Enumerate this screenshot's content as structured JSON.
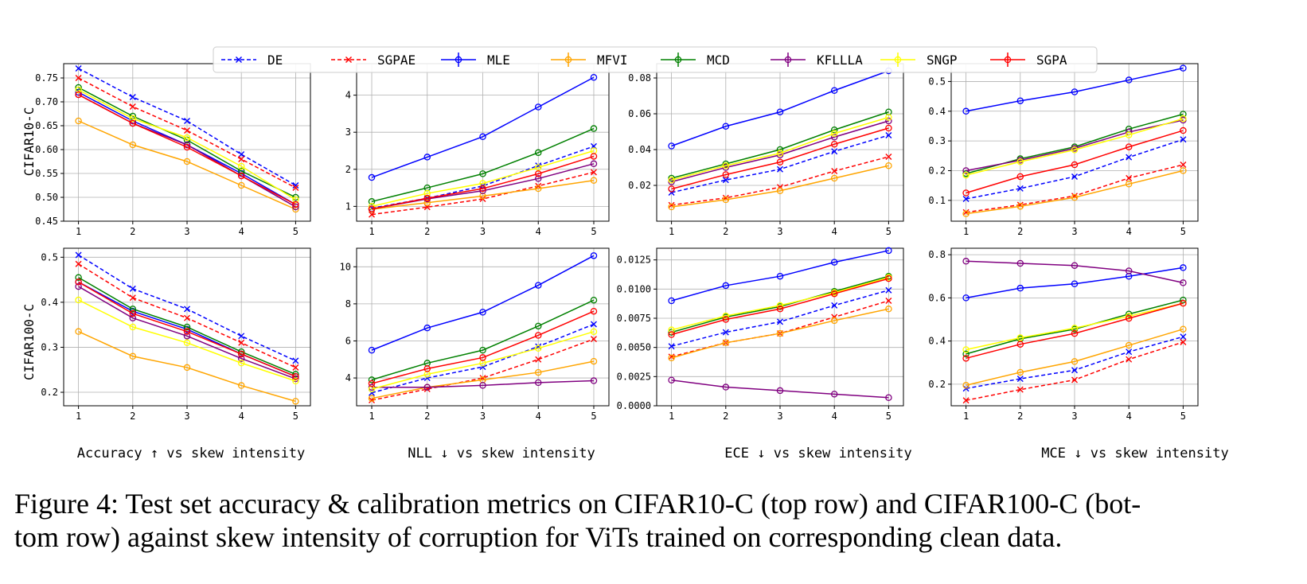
{
  "legend": {
    "entries": [
      {
        "name": "DE",
        "color": "#0000ff",
        "dashed": true,
        "marker": "x"
      },
      {
        "name": "SGPAE",
        "color": "#ff0000",
        "dashed": true,
        "marker": "x"
      },
      {
        "name": "MLE",
        "color": "#0000ff",
        "dashed": false,
        "marker": "o"
      },
      {
        "name": "MFVI",
        "color": "#ffa500",
        "dashed": false,
        "marker": "o"
      },
      {
        "name": "MCD",
        "color": "#008000",
        "dashed": false,
        "marker": "o"
      },
      {
        "name": "KFLLLA",
        "color": "#800080",
        "dashed": false,
        "marker": "o"
      },
      {
        "name": "SNGP",
        "color": "#ffff00",
        "dashed": false,
        "marker": "o"
      },
      {
        "name": "SGPA",
        "color": "#ff0000",
        "dashed": false,
        "marker": "o"
      }
    ]
  },
  "row_labels": [
    "CIFAR10-C",
    "CIFAR100-C"
  ],
  "column_labels": [
    "Accuracy ↑  vs skew intensity",
    "NLL ↓  vs skew intensity",
    "ECE ↓  vs skew intensity",
    "MCE ↓  vs skew intensity"
  ],
  "chart_data": [
    {
      "type": "line",
      "row": 0,
      "col": 0,
      "x": [
        1,
        2,
        3,
        4,
        5
      ],
      "ylim": [
        0.45,
        0.78
      ],
      "yticks": [
        "0.45",
        "0.50",
        "0.55",
        "0.60",
        "0.65",
        "0.70",
        "0.75"
      ],
      "ytick_values": [
        0.45,
        0.5,
        0.55,
        0.6,
        0.65,
        0.7,
        0.75
      ],
      "xticks": [
        "1",
        "2",
        "3",
        "4",
        "5"
      ],
      "series": [
        {
          "name": "DE",
          "values": [
            0.77,
            0.71,
            0.66,
            0.59,
            0.525
          ]
        },
        {
          "name": "SGPAE",
          "values": [
            0.75,
            0.69,
            0.64,
            0.58,
            0.52
          ]
        },
        {
          "name": "MLE",
          "values": [
            0.72,
            0.66,
            0.61,
            0.55,
            0.485
          ]
        },
        {
          "name": "MFVI",
          "values": [
            0.66,
            0.61,
            0.575,
            0.525,
            0.475
          ]
        },
        {
          "name": "MCD",
          "values": [
            0.73,
            0.67,
            0.62,
            0.555,
            0.5
          ]
        },
        {
          "name": "KFLLLA",
          "values": [
            0.715,
            0.655,
            0.61,
            0.545,
            0.48
          ]
        },
        {
          "name": "SNGP",
          "values": [
            0.725,
            0.665,
            0.625,
            0.565,
            0.495
          ]
        },
        {
          "name": "SGPA",
          "values": [
            0.715,
            0.655,
            0.605,
            0.545,
            0.485
          ]
        }
      ]
    },
    {
      "type": "line",
      "row": 0,
      "col": 1,
      "x": [
        1,
        2,
        3,
        4,
        5
      ],
      "ylim": [
        0.6,
        4.85
      ],
      "yticks": [
        "1",
        "2",
        "3",
        "4"
      ],
      "ytick_values": [
        1,
        2,
        3,
        4
      ],
      "xticks": [
        "1",
        "2",
        "3",
        "4",
        "5"
      ],
      "series": [
        {
          "name": "DE",
          "values": [
            0.95,
            1.22,
            1.55,
            2.1,
            2.62
          ]
        },
        {
          "name": "SGPAE",
          "values": [
            0.78,
            0.98,
            1.2,
            1.55,
            1.92
          ]
        },
        {
          "name": "MLE",
          "values": [
            1.78,
            2.33,
            2.88,
            3.68,
            4.48
          ]
        },
        {
          "name": "MFVI",
          "values": [
            0.92,
            1.1,
            1.28,
            1.48,
            1.7
          ]
        },
        {
          "name": "MCD",
          "values": [
            1.13,
            1.5,
            1.88,
            2.45,
            3.1
          ]
        },
        {
          "name": "KFLLLA",
          "values": [
            0.93,
            1.2,
            1.42,
            1.75,
            2.15
          ]
        },
        {
          "name": "SNGP",
          "values": [
            1.0,
            1.35,
            1.62,
            2.05,
            2.5
          ]
        },
        {
          "name": "SGPA",
          "values": [
            0.93,
            1.22,
            1.48,
            1.88,
            2.35
          ]
        }
      ]
    },
    {
      "type": "line",
      "row": 0,
      "col": 2,
      "x": [
        1,
        2,
        3,
        4,
        5
      ],
      "ylim": [
        0.0,
        0.088
      ],
      "yticks": [
        "0.02",
        "0.04",
        "0.06",
        "0.08"
      ],
      "ytick_values": [
        0.02,
        0.04,
        0.06,
        0.08
      ],
      "xticks": [
        "1",
        "2",
        "3",
        "4",
        "5"
      ],
      "series": [
        {
          "name": "DE",
          "values": [
            0.016,
            0.023,
            0.029,
            0.039,
            0.048
          ]
        },
        {
          "name": "SGPAE",
          "values": [
            0.009,
            0.013,
            0.019,
            0.028,
            0.036
          ]
        },
        {
          "name": "MLE",
          "values": [
            0.042,
            0.053,
            0.061,
            0.073,
            0.084
          ]
        },
        {
          "name": "MFVI",
          "values": [
            0.008,
            0.012,
            0.017,
            0.024,
            0.031
          ]
        },
        {
          "name": "MCD",
          "values": [
            0.024,
            0.032,
            0.04,
            0.051,
            0.061
          ]
        },
        {
          "name": "KFLLLA",
          "values": [
            0.022,
            0.03,
            0.037,
            0.047,
            0.056
          ]
        },
        {
          "name": "SNGP",
          "values": [
            0.023,
            0.031,
            0.038,
            0.049,
            0.058
          ]
        },
        {
          "name": "SGPA",
          "values": [
            0.018,
            0.026,
            0.033,
            0.043,
            0.052
          ]
        }
      ]
    },
    {
      "type": "line",
      "row": 0,
      "col": 3,
      "x": [
        1,
        2,
        3,
        4,
        5
      ],
      "ylim": [
        0.03,
        0.56
      ],
      "yticks": [
        "0.1",
        "0.2",
        "0.3",
        "0.4",
        "0.5"
      ],
      "ytick_values": [
        0.1,
        0.2,
        0.3,
        0.4,
        0.5
      ],
      "xticks": [
        "1",
        "2",
        "3",
        "4",
        "5"
      ],
      "series": [
        {
          "name": "DE",
          "values": [
            0.105,
            0.14,
            0.18,
            0.245,
            0.305
          ]
        },
        {
          "name": "SGPAE",
          "values": [
            0.06,
            0.085,
            0.115,
            0.175,
            0.22
          ]
        },
        {
          "name": "MLE",
          "values": [
            0.4,
            0.435,
            0.465,
            0.505,
            0.545
          ]
        },
        {
          "name": "MFVI",
          "values": [
            0.055,
            0.08,
            0.11,
            0.155,
            0.2
          ]
        },
        {
          "name": "MCD",
          "values": [
            0.19,
            0.24,
            0.28,
            0.34,
            0.39
          ]
        },
        {
          "name": "KFLLLA",
          "values": [
            0.2,
            0.235,
            0.275,
            0.33,
            0.37
          ]
        },
        {
          "name": "SNGP",
          "values": [
            0.185,
            0.23,
            0.27,
            0.32,
            0.375
          ]
        },
        {
          "name": "SGPA",
          "values": [
            0.125,
            0.18,
            0.22,
            0.28,
            0.335
          ]
        }
      ]
    },
    {
      "type": "line",
      "row": 1,
      "col": 0,
      "x": [
        1,
        2,
        3,
        4,
        5
      ],
      "ylim": [
        0.17,
        0.52
      ],
      "yticks": [
        "0.2",
        "0.3",
        "0.4",
        "0.5"
      ],
      "ytick_values": [
        0.2,
        0.3,
        0.4,
        0.5
      ],
      "xticks": [
        "1",
        "2",
        "3",
        "4",
        "5"
      ],
      "series": [
        {
          "name": "DE",
          "values": [
            0.505,
            0.43,
            0.385,
            0.325,
            0.27
          ]
        },
        {
          "name": "SGPAE",
          "values": [
            0.485,
            0.41,
            0.365,
            0.31,
            0.255
          ]
        },
        {
          "name": "MLE",
          "values": [
            0.445,
            0.38,
            0.34,
            0.285,
            0.235
          ]
        },
        {
          "name": "MFVI",
          "values": [
            0.335,
            0.28,
            0.255,
            0.215,
            0.18
          ]
        },
        {
          "name": "MCD",
          "values": [
            0.455,
            0.385,
            0.345,
            0.29,
            0.24
          ]
        },
        {
          "name": "KFLLLA",
          "values": [
            0.435,
            0.365,
            0.325,
            0.275,
            0.23
          ]
        },
        {
          "name": "SNGP",
          "values": [
            0.405,
            0.345,
            0.31,
            0.265,
            0.225
          ]
        },
        {
          "name": "SGPA",
          "values": [
            0.445,
            0.375,
            0.335,
            0.285,
            0.235
          ]
        }
      ]
    },
    {
      "type": "line",
      "row": 1,
      "col": 1,
      "x": [
        1,
        2,
        3,
        4,
        5
      ],
      "ylim": [
        2.5,
        11.0
      ],
      "yticks": [
        "4",
        "6",
        "8",
        "10"
      ],
      "ytick_values": [
        4,
        6,
        8,
        10
      ],
      "xticks": [
        "1",
        "2",
        "3",
        "4",
        "5"
      ],
      "series": [
        {
          "name": "DE",
          "values": [
            3.2,
            4.0,
            4.6,
            5.7,
            6.9
          ]
        },
        {
          "name": "SGPAE",
          "values": [
            2.8,
            3.4,
            4.0,
            5.0,
            6.1
          ]
        },
        {
          "name": "MLE",
          "values": [
            5.5,
            6.7,
            7.55,
            9.0,
            10.6
          ]
        },
        {
          "name": "MFVI",
          "values": [
            2.9,
            3.5,
            3.9,
            4.3,
            4.9
          ]
        },
        {
          "name": "MCD",
          "values": [
            3.9,
            4.8,
            5.5,
            6.8,
            8.2
          ]
        },
        {
          "name": "KFLLLA",
          "values": [
            3.5,
            3.5,
            3.6,
            3.75,
            3.85
          ]
        },
        {
          "name": "SNGP",
          "values": [
            3.4,
            4.2,
            4.8,
            5.6,
            6.5
          ]
        },
        {
          "name": "SGPA",
          "values": [
            3.7,
            4.5,
            5.1,
            6.3,
            7.6
          ]
        }
      ]
    },
    {
      "type": "line",
      "row": 1,
      "col": 2,
      "x": [
        1,
        2,
        3,
        4,
        5
      ],
      "ylim": [
        0.0,
        0.0135
      ],
      "yticks": [
        "0.0000",
        "0.0025",
        "0.0050",
        "0.0075",
        "0.0100",
        "0.0125"
      ],
      "ytick_values": [
        0,
        0.0025,
        0.005,
        0.0075,
        0.01,
        0.0125
      ],
      "xticks": [
        "1",
        "2",
        "3",
        "4",
        "5"
      ],
      "series": [
        {
          "name": "DE",
          "values": [
            0.0051,
            0.0063,
            0.0072,
            0.0086,
            0.0099
          ]
        },
        {
          "name": "SGPAE",
          "values": [
            0.0042,
            0.0054,
            0.0062,
            0.0076,
            0.009
          ]
        },
        {
          "name": "MLE",
          "values": [
            0.009,
            0.0103,
            0.0111,
            0.0123,
            0.0133
          ]
        },
        {
          "name": "MFVI",
          "values": [
            0.0041,
            0.0054,
            0.0062,
            0.0073,
            0.0083
          ]
        },
        {
          "name": "MCD",
          "values": [
            0.0063,
            0.0076,
            0.0085,
            0.0098,
            0.0111
          ]
        },
        {
          "name": "KFLLLA",
          "values": [
            0.0022,
            0.0016,
            0.0013,
            0.001,
            0.0007
          ]
        },
        {
          "name": "SNGP",
          "values": [
            0.0065,
            0.0077,
            0.0086,
            0.0097,
            0.011
          ]
        },
        {
          "name": "SGPA",
          "values": [
            0.0061,
            0.0074,
            0.0083,
            0.0096,
            0.0109
          ]
        }
      ]
    },
    {
      "type": "line",
      "row": 1,
      "col": 3,
      "x": [
        1,
        2,
        3,
        4,
        5
      ],
      "ylim": [
        0.1,
        0.83
      ],
      "yticks": [
        "0.2",
        "0.4",
        "0.6",
        "0.8"
      ],
      "ytick_values": [
        0.2,
        0.4,
        0.6,
        0.8
      ],
      "xticks": [
        "1",
        "2",
        "3",
        "4",
        "5"
      ],
      "series": [
        {
          "name": "DE",
          "values": [
            0.18,
            0.225,
            0.265,
            0.35,
            0.42
          ]
        },
        {
          "name": "SGPAE",
          "values": [
            0.125,
            0.175,
            0.22,
            0.315,
            0.395
          ]
        },
        {
          "name": "MLE",
          "values": [
            0.6,
            0.645,
            0.665,
            0.7,
            0.74
          ]
        },
        {
          "name": "MFVI",
          "values": [
            0.195,
            0.255,
            0.305,
            0.38,
            0.455
          ]
        },
        {
          "name": "MCD",
          "values": [
            0.34,
            0.41,
            0.455,
            0.525,
            0.59
          ]
        },
        {
          "name": "KFLLLA",
          "values": [
            0.77,
            0.76,
            0.75,
            0.725,
            0.67
          ]
        },
        {
          "name": "SNGP",
          "values": [
            0.36,
            0.415,
            0.46,
            0.515,
            0.575
          ]
        },
        {
          "name": "SGPA",
          "values": [
            0.32,
            0.385,
            0.435,
            0.505,
            0.575
          ]
        }
      ]
    }
  ],
  "caption": {
    "line1": "Figure 4: Test set accuracy & calibration metrics on CIFAR10-C (top row) and CIFAR100-C (bot-",
    "line2": "tom row) against skew intensity of corruption for ViTs trained on corresponding clean data."
  }
}
